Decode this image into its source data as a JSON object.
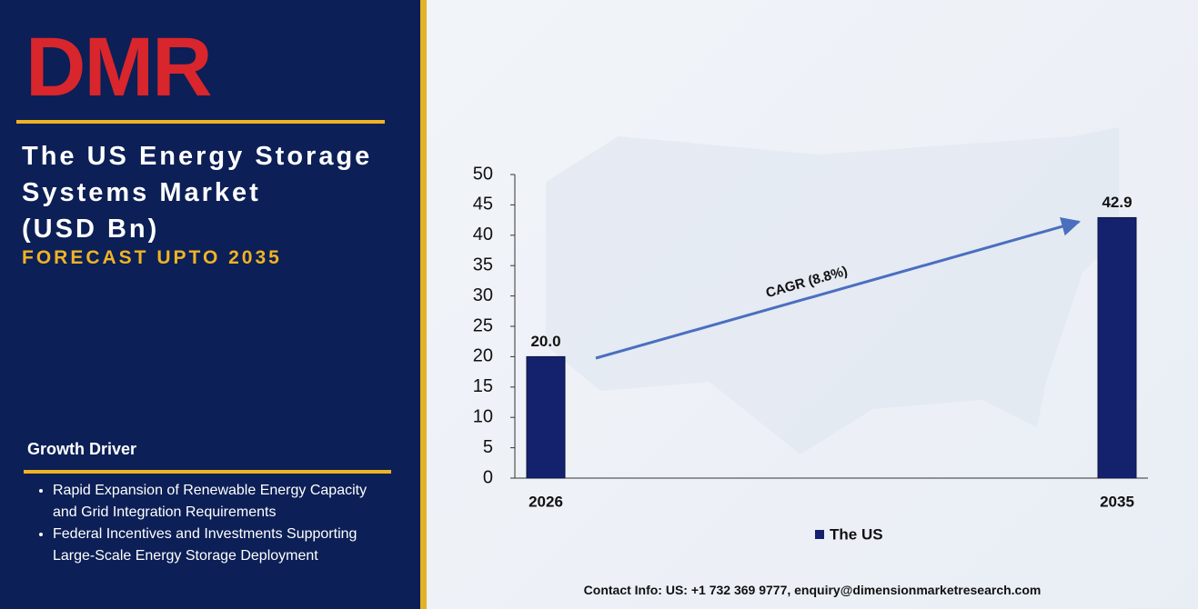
{
  "logo": "DMR",
  "title_lines": [
    "The US Energy Storage",
    "Systems Market",
    "(USD Bn)"
  ],
  "subtitle": "FORECAST UPTO 2035",
  "growth_driver": {
    "heading": "Growth Driver",
    "items": [
      "Rapid Expansion of Renewable Energy Capacity and Grid Integration Requirements",
      "Federal Incentives and Investments Supporting Large-Scale Energy Storage Deployment"
    ]
  },
  "contact": "Contact Info: US: +1 732 369 9777, enquiry@dimensionmarketresearch.com",
  "chart_data": {
    "type": "bar",
    "categories": [
      "2026",
      "2035"
    ],
    "series": [
      {
        "name": "The US",
        "color": "#14226e",
        "values": [
          20.0,
          42.9
        ],
        "value_labels": [
          "20.0",
          "42.9"
        ]
      }
    ],
    "ylim": [
      0,
      50
    ],
    "yticks": [
      0,
      5,
      10,
      15,
      20,
      25,
      30,
      35,
      40,
      45,
      50
    ],
    "annotation": "CAGR (8.8%)"
  }
}
